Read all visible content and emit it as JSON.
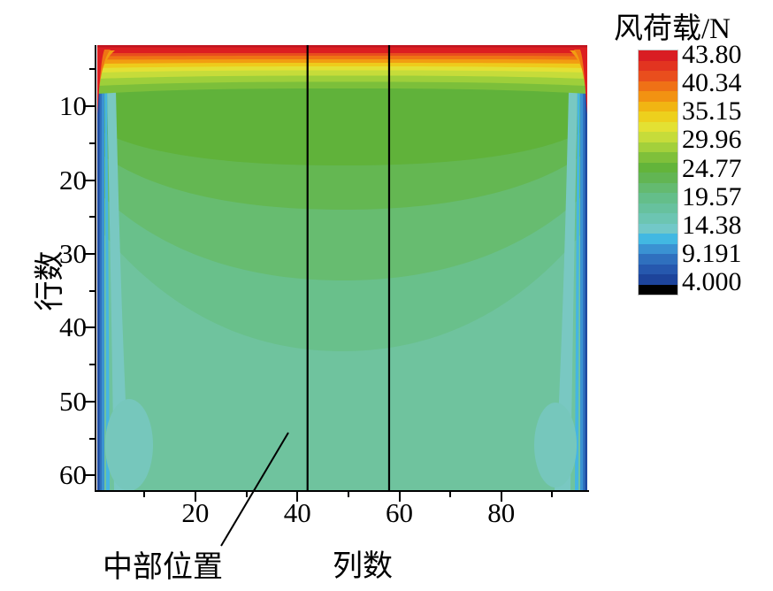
{
  "chart_data": {
    "type": "heatmap",
    "subtype": "filled-contour",
    "colorbar_title": "风荷载/N",
    "xlabel": "列数",
    "ylabel": "行数",
    "x_axis": {
      "major_ticks": [
        20,
        40,
        60,
        80
      ],
      "minor_ticks": [
        10,
        30,
        50,
        70,
        90
      ],
      "range": [
        1,
        97
      ]
    },
    "y_axis": {
      "major_ticks": [
        10,
        20,
        30,
        40,
        50,
        60
      ],
      "minor_ticks": [
        5,
        15,
        25,
        35,
        45,
        55
      ],
      "range": [
        1,
        60
      ],
      "direction": "downward"
    },
    "marker_columns": [
      42,
      58
    ],
    "marker_line_color": "#000000",
    "annotation": {
      "text": "中部位置",
      "points_to": "region between the two vertical lines at columns 42 and 58"
    },
    "colorbar": {
      "labels": [
        "43.80",
        "40.34",
        "35.15",
        "29.96",
        "24.77",
        "19.57",
        "14.38",
        "9.191",
        "4.000"
      ],
      "level_values": [
        4.0,
        5.73,
        7.461,
        9.191,
        10.92,
        12.65,
        14.38,
        16.11,
        17.84,
        19.57,
        21.3,
        23.04,
        24.77,
        26.5,
        28.23,
        29.96,
        31.69,
        33.42,
        35.15,
        36.88,
        38.61,
        40.34,
        42.07,
        43.8
      ],
      "band_colors": [
        "#d91d23",
        "#e23420",
        "#e94e1d",
        "#ef7116",
        "#f29212",
        "#f1b513",
        "#edd01d",
        "#e3e133",
        "#c6dc3a",
        "#a3d03b",
        "#7fc03a",
        "#63b43a",
        "#62b553",
        "#64ba70",
        "#64be8a",
        "#67c19e",
        "#6cc5b2",
        "#72c8c8",
        "#42b8e2",
        "#3a92d2",
        "#2f70be",
        "#2658ae",
        "#1d449b"
      ],
      "below_min_color": "#000000"
    },
    "plot_bands": [
      {
        "name": "field-mid-teal",
        "color": "#6fc39e"
      },
      {
        "name": "band-teal-green",
        "color": "#69c08b"
      },
      {
        "name": "band-green-teal",
        "color": "#67bc70"
      },
      {
        "name": "band-soft-green",
        "color": "#64b752"
      },
      {
        "name": "band-main-green",
        "color": "#60b23a"
      },
      {
        "name": "edge-light-teal",
        "color": "#79c8c2"
      },
      {
        "name": "edge-cyan",
        "color": "#45b5e2"
      },
      {
        "name": "edge-light-blue",
        "color": "#3a92d2"
      },
      {
        "name": "edge-blue",
        "color": "#2f70be"
      },
      {
        "name": "edge-navy",
        "color": "#1f4aa0"
      },
      {
        "name": "corner-blob-teal",
        "color": "#76c7bc"
      },
      {
        "name": "top-green",
        "color": "#7cbf3a"
      },
      {
        "name": "top-lime",
        "color": "#9ecf3a"
      },
      {
        "name": "top-light-lime",
        "color": "#c6dc3a"
      },
      {
        "name": "top-pale-yellow",
        "color": "#e3e135"
      },
      {
        "name": "top-yellow",
        "color": "#eecb1b"
      },
      {
        "name": "top-amber",
        "color": "#f29d11"
      },
      {
        "name": "top-orange",
        "color": "#ef7414"
      },
      {
        "name": "top-orange-red",
        "color": "#e84d1e"
      },
      {
        "name": "top-red",
        "color": "#dc1e21"
      },
      {
        "name": "top-dark-red",
        "color": "#c1141f"
      }
    ],
    "description": "Wind load (N) over a 60-row by ~97-column array: maximum ~43.8 N along the top rows, decreasing with row number to ~19-20 N over the lower half; low values (<14 N, blue) in the outermost left/right columns; two vertical black lines mark columns 42 and 58 (middle position)."
  }
}
